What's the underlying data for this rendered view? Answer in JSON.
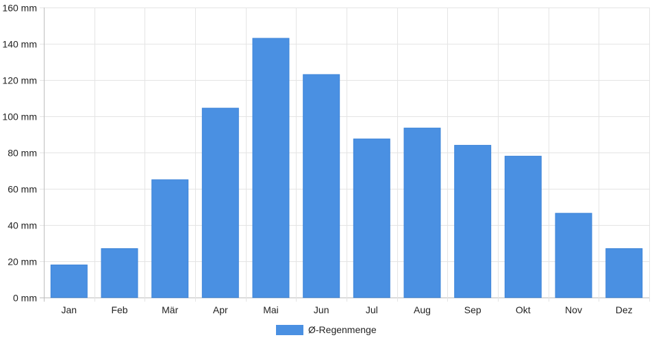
{
  "chart_data": {
    "type": "bar",
    "categories": [
      "Jan",
      "Feb",
      "Mär",
      "Apr",
      "Mai",
      "Jun",
      "Jul",
      "Aug",
      "Sep",
      "Okt",
      "Nov",
      "Dez"
    ],
    "series": [
      {
        "name": "Ø-Regenmenge",
        "values": [
          18,
          27,
          65,
          104.5,
          143,
          123,
          87.5,
          93.5,
          84,
          78,
          46.5,
          27
        ],
        "color": "#4a90e2"
      }
    ],
    "y_unit": "mm",
    "ylim": [
      0,
      160
    ],
    "y_ticks": [
      0,
      20,
      40,
      60,
      80,
      100,
      120,
      140,
      160
    ],
    "y_tick_labels": [
      "0 mm",
      "20 mm",
      "40 mm",
      "60 mm",
      "80 mm",
      "100 mm",
      "120 mm",
      "140 mm",
      "160 mm"
    ],
    "grid": true,
    "legend_position": "bottom-center"
  }
}
